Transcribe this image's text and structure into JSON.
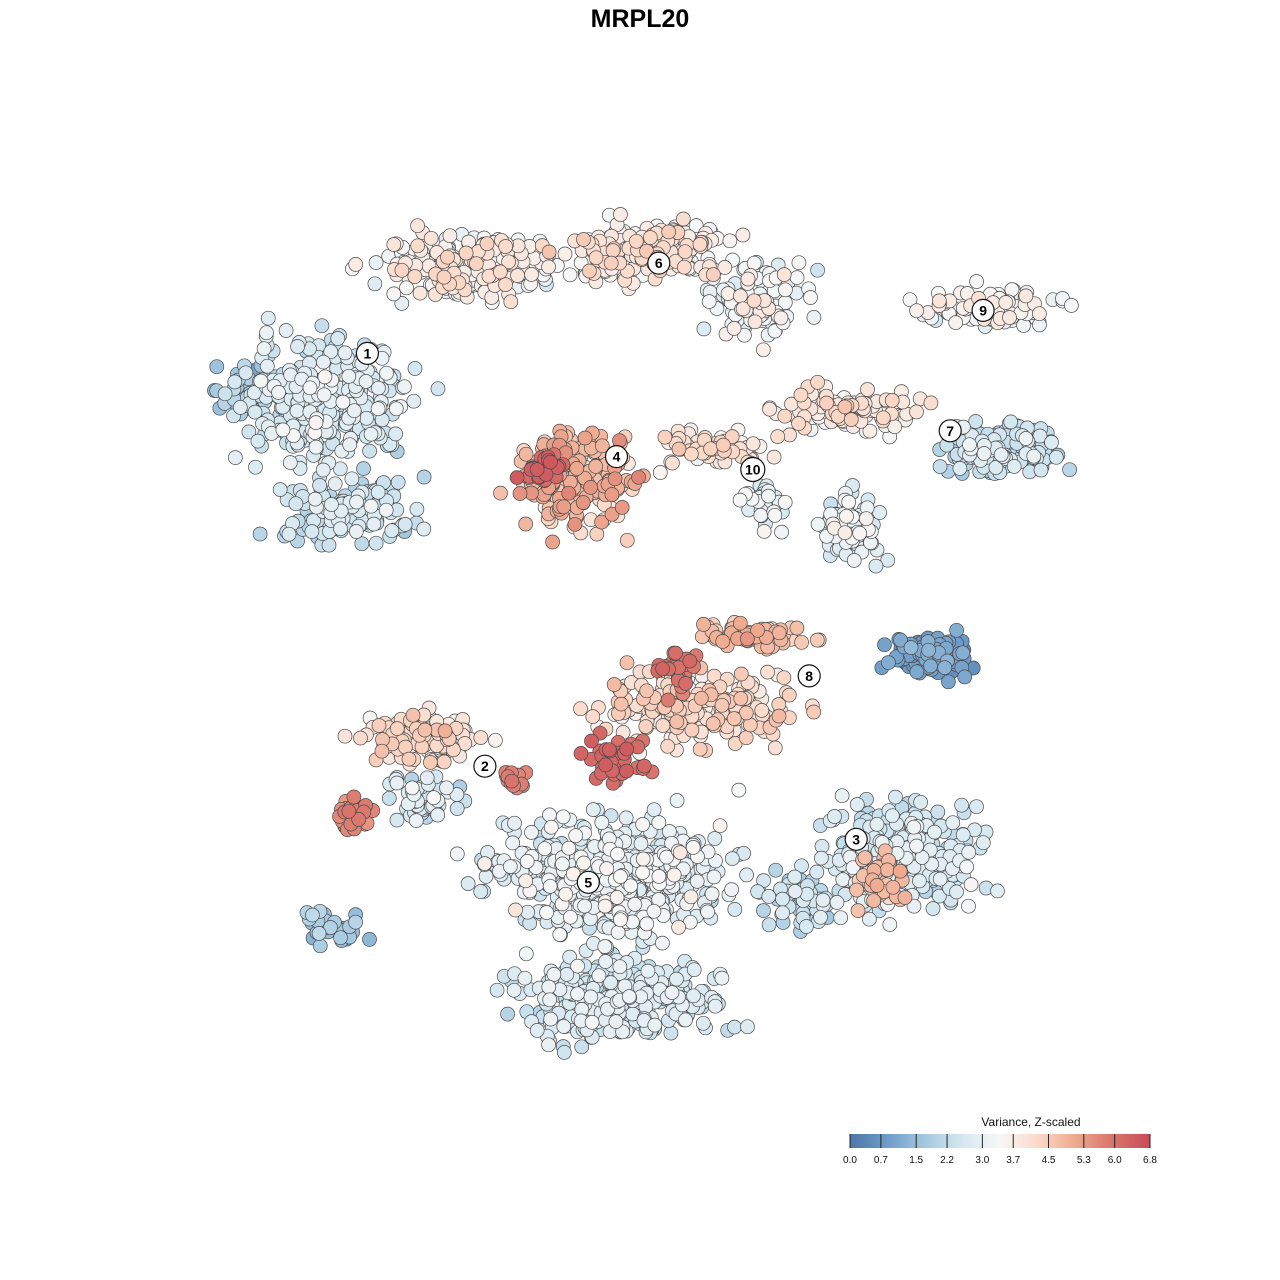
{
  "chart_data": {
    "type": "scatter",
    "title": "MRPL20",
    "point_shading": "Variance, Z-scaled",
    "color_scale": {
      "title": "Variance, Z-scaled",
      "min": 0.0,
      "max": 6.8,
      "ticks": [
        "0.0",
        "0.7",
        "1.5",
        "2.2",
        "3.0",
        "3.7",
        "4.5",
        "5.3",
        "6.0",
        "6.8"
      ],
      "tick_values": [
        0.0,
        0.7,
        1.5,
        2.2,
        3.0,
        3.7,
        4.5,
        5.3,
        6.0,
        6.8
      ],
      "colors": [
        "#4d76a6",
        "#6f9cc8",
        "#a3c8e0",
        "#d6e8f1",
        "#f7f7f7",
        "#fbd9c8",
        "#eea98f",
        "#d9746c",
        "#c94b57"
      ]
    },
    "axes_visible": false,
    "grid": false,
    "legend_position": "bottom-right",
    "clusters": [
      {
        "label": "1",
        "x": -5.8,
        "y": 6.2,
        "mean_value": 2.7
      },
      {
        "label": "2",
        "x": -3.3,
        "y": -3.4,
        "mean_value": 4.4
      },
      {
        "label": "3",
        "x": 4.6,
        "y": -5.1,
        "mean_value": 3.1
      },
      {
        "label": "4",
        "x": -0.5,
        "y": 3.8,
        "mean_value": 4.9
      },
      {
        "label": "5",
        "x": -1.1,
        "y": -6.1,
        "mean_value": 2.6
      },
      {
        "label": "6",
        "x": 0.4,
        "y": 8.3,
        "mean_value": 3.8
      },
      {
        "label": "7",
        "x": 6.6,
        "y": 4.4,
        "mean_value": 2.8
      },
      {
        "label": "8",
        "x": 3.6,
        "y": -1.3,
        "mean_value": 4.6
      },
      {
        "label": "9",
        "x": 7.3,
        "y": 7.2,
        "mean_value": 3.4
      },
      {
        "label": "10",
        "x": 2.4,
        "y": 3.5,
        "mean_value": 3.2
      }
    ]
  }
}
